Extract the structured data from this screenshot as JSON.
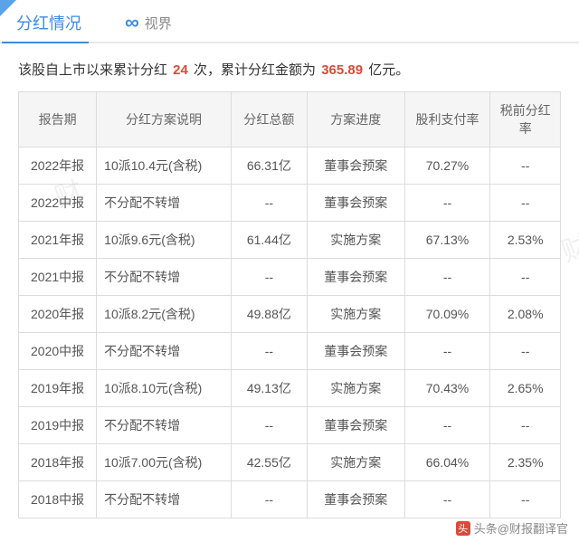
{
  "header": {
    "title": "分红情况",
    "brand_label": "视界"
  },
  "summary": {
    "prefix": "该股自上市以来累计分红 ",
    "count": "24",
    "mid": " 次，累计分红金额为 ",
    "amount": "365.89",
    "suffix": " 亿元。"
  },
  "columns": {
    "period": "报告期",
    "plan": "分红方案说明",
    "total": "分红总额",
    "progress": "方案进度",
    "payout": "股利支付率",
    "pretax": "税前分红率"
  },
  "rows": [
    {
      "period": "2022年报",
      "plan": "10派10.4元(含税)",
      "total": "66.31亿",
      "progress": "董事会预案",
      "payout": "70.27%",
      "pretax": "--"
    },
    {
      "period": "2022中报",
      "plan": "不分配不转增",
      "total": "--",
      "progress": "董事会预案",
      "payout": "--",
      "pretax": "--"
    },
    {
      "period": "2021年报",
      "plan": "10派9.6元(含税)",
      "total": "61.44亿",
      "progress": "实施方案",
      "payout": "67.13%",
      "pretax": "2.53%"
    },
    {
      "period": "2021中报",
      "plan": "不分配不转增",
      "total": "--",
      "progress": "董事会预案",
      "payout": "--",
      "pretax": "--"
    },
    {
      "period": "2020年报",
      "plan": "10派8.2元(含税)",
      "total": "49.88亿",
      "progress": "实施方案",
      "payout": "70.09%",
      "pretax": "2.08%"
    },
    {
      "period": "2020中报",
      "plan": "不分配不转增",
      "total": "--",
      "progress": "董事会预案",
      "payout": "--",
      "pretax": "--"
    },
    {
      "period": "2019年报",
      "plan": "10派8.10元(含税)",
      "total": "49.13亿",
      "progress": "实施方案",
      "payout": "70.43%",
      "pretax": "2.65%"
    },
    {
      "period": "2019中报",
      "plan": "不分配不转增",
      "total": "--",
      "progress": "董事会预案",
      "payout": "--",
      "pretax": "--"
    },
    {
      "period": "2018年报",
      "plan": "10派7.00元(含税)",
      "total": "42.55亿",
      "progress": "实施方案",
      "payout": "66.04%",
      "pretax": "2.35%"
    },
    {
      "period": "2018中报",
      "plan": "不分配不转增",
      "total": "--",
      "progress": "董事会预案",
      "payout": "--",
      "pretax": "--"
    }
  ],
  "footer": {
    "source_prefix": "头条@",
    "source_name": "财报翻译官"
  }
}
